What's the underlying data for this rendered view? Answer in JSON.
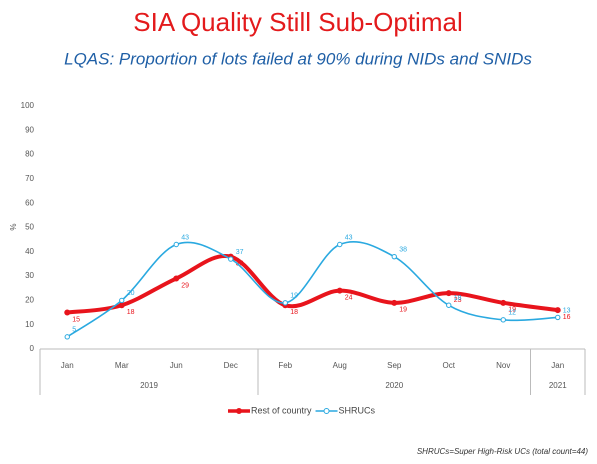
{
  "chart_data": {
    "type": "line",
    "title": "SIA Quality Still Sub-Optimal",
    "subtitle": "LQAS: Proportion of lots failed at 90% during NIDs and SNIDs",
    "y_label": "%",
    "categories": [
      "Jan",
      "Mar",
      "Jun",
      "Dec",
      "Feb",
      "Aug",
      "Sep",
      "Oct",
      "Nov",
      "Jan"
    ],
    "x_groups": [
      {
        "label": "2019",
        "span": 4
      },
      {
        "label": "2020",
        "span": 5
      },
      {
        "label": "2021",
        "span": 1
      }
    ],
    "series": [
      {
        "name": "Rest of country",
        "color": "#e8141c",
        "values": [
          15,
          18,
          29,
          38,
          18,
          24,
          19,
          23,
          19,
          16
        ]
      },
      {
        "name": "SHRUCs",
        "color": "#2aa9e0",
        "values": [
          5,
          20,
          43,
          37,
          19,
          43,
          38,
          18,
          12,
          13
        ]
      }
    ],
    "ylim": [
      0,
      100
    ],
    "yticks": [
      0,
      10,
      20,
      30,
      40,
      50,
      60,
      70,
      80,
      90,
      100
    ],
    "footnote": "SHRUCs=Super High-Risk UCs (total count=44)"
  }
}
